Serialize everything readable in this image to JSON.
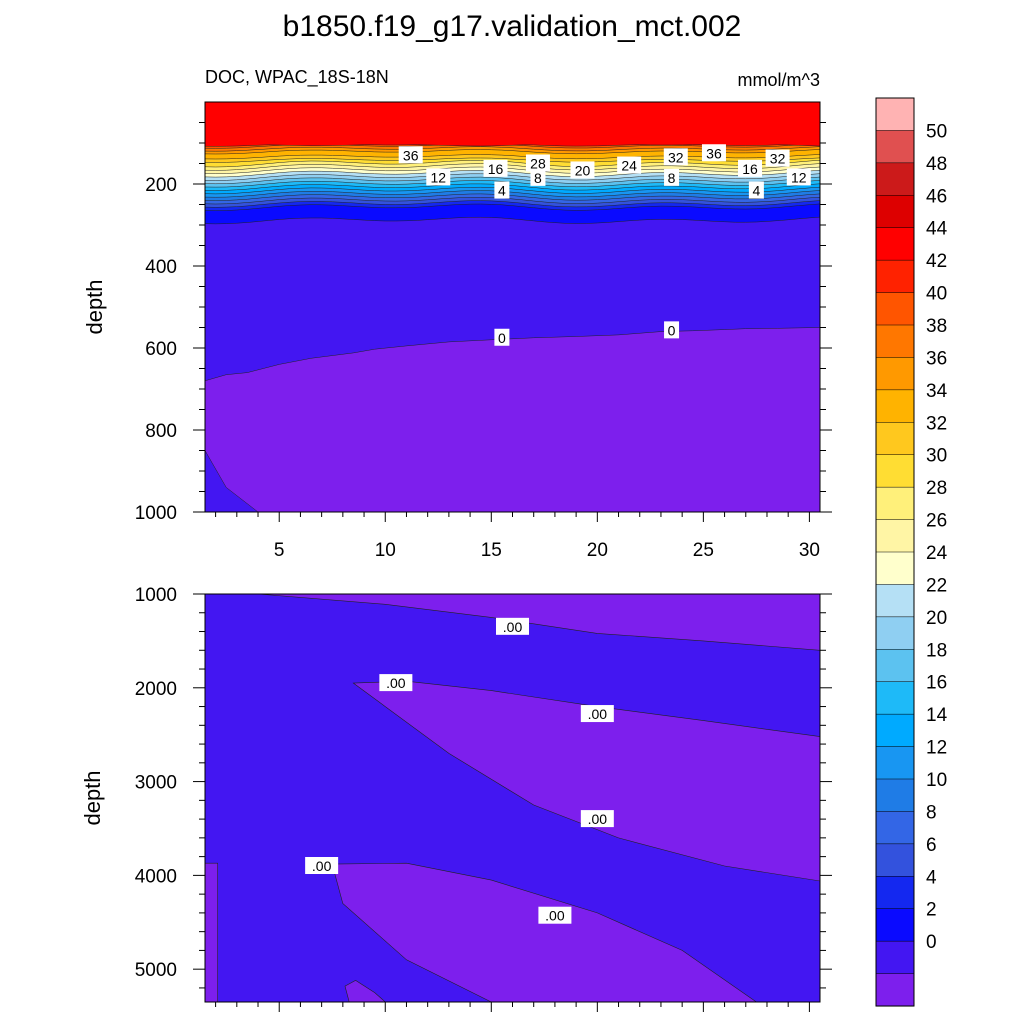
{
  "chart_data": {
    "type": "contour",
    "title": "b1850.f19_g17.validation_mct.002",
    "variable_label": "DOC, WPAC_18S-18N",
    "units_label": "mmol/m^3",
    "upper_panel": {
      "ylabel": "depth",
      "ylim": [
        0,
        1000
      ],
      "xlim": [
        1.5,
        30.5
      ],
      "yticks": [
        "200",
        "400",
        "600",
        "800",
        "1000"
      ],
      "ytick_values": [
        200,
        400,
        600,
        800,
        1000
      ],
      "xticks": [
        "5",
        "10",
        "15",
        "20",
        "25",
        "30"
      ],
      "xtick_values": [
        5,
        10,
        15,
        20,
        25,
        30
      ],
      "contour_levels": [
        42,
        40,
        38,
        36,
        34,
        32,
        30,
        28,
        26,
        24,
        22,
        20,
        18,
        16,
        14,
        12,
        10,
        8,
        6,
        4,
        2,
        0
      ],
      "contour_labels": [
        {
          "text": "36",
          "x": 11.2,
          "y": 130
        },
        {
          "text": "28",
          "x": 17.2,
          "y": 150
        },
        {
          "text": "24",
          "x": 21.5,
          "y": 155
        },
        {
          "text": "32",
          "x": 23.7,
          "y": 135
        },
        {
          "text": "36",
          "x": 25.5,
          "y": 125
        },
        {
          "text": "32",
          "x": 28.5,
          "y": 138
        },
        {
          "text": "20",
          "x": 19.3,
          "y": 167
        },
        {
          "text": "16",
          "x": 15.2,
          "y": 163
        },
        {
          "text": "12",
          "x": 12.5,
          "y": 184
        },
        {
          "text": "16",
          "x": 27.2,
          "y": 163
        },
        {
          "text": "12",
          "x": 29.5,
          "y": 184
        },
        {
          "text": "8",
          "x": 17.2,
          "y": 185
        },
        {
          "text": "8",
          "x": 23.5,
          "y": 185
        },
        {
          "text": "4",
          "x": 15.5,
          "y": 216
        },
        {
          "text": "4",
          "x": 27.5,
          "y": 216
        },
        {
          "text": "0",
          "x": 15.5,
          "y": 575
        },
        {
          "text": "0",
          "x": 23.5,
          "y": 557
        }
      ]
    },
    "lower_panel": {
      "ylabel": "depth",
      "ylim": [
        1000,
        5350
      ],
      "yticks": [
        "1000",
        "2000",
        "3000",
        "4000",
        "5000"
      ],
      "ytick_values": [
        1000,
        2000,
        3000,
        4000,
        5000
      ],
      "contour_labels": [
        {
          "text": ".00",
          "x": 16.0,
          "y": 1350
        },
        {
          "text": ".00",
          "x": 10.5,
          "y": 1950
        },
        {
          "text": ".00",
          "x": 20.0,
          "y": 2280
        },
        {
          "text": ".00",
          "x": 20.0,
          "y": 3400
        },
        {
          "text": ".00",
          "x": 7.0,
          "y": 3900
        },
        {
          "text": ".00",
          "x": 18.0,
          "y": 4430
        }
      ]
    },
    "colorbar": {
      "labels": [
        "50",
        "48",
        "46",
        "44",
        "42",
        "40",
        "38",
        "36",
        "34",
        "32",
        "30",
        "28",
        "26",
        "24",
        "22",
        "20",
        "18",
        "16",
        "14",
        "12",
        "10",
        "8",
        "6",
        "4",
        "2",
        "0"
      ],
      "colors": [
        "#ffb3b3",
        "#e05050",
        "#cc1a1a",
        "#dd0000",
        "#ff0000",
        "#ff2200",
        "#ff5500",
        "#ff7700",
        "#ff9900",
        "#ffb300",
        "#ffc81e",
        "#ffdd33",
        "#fff07a",
        "#fff5a5",
        "#ffffcc",
        "#b5e0f5",
        "#8fcff2",
        "#5cc2f0",
        "#1ebaf8",
        "#00aaff",
        "#1896f2",
        "#1f7ce6",
        "#3366e6",
        "#3352dd",
        "#1428f0",
        "#0a0aff",
        "#4316f2",
        "#7d1fed"
      ]
    }
  }
}
